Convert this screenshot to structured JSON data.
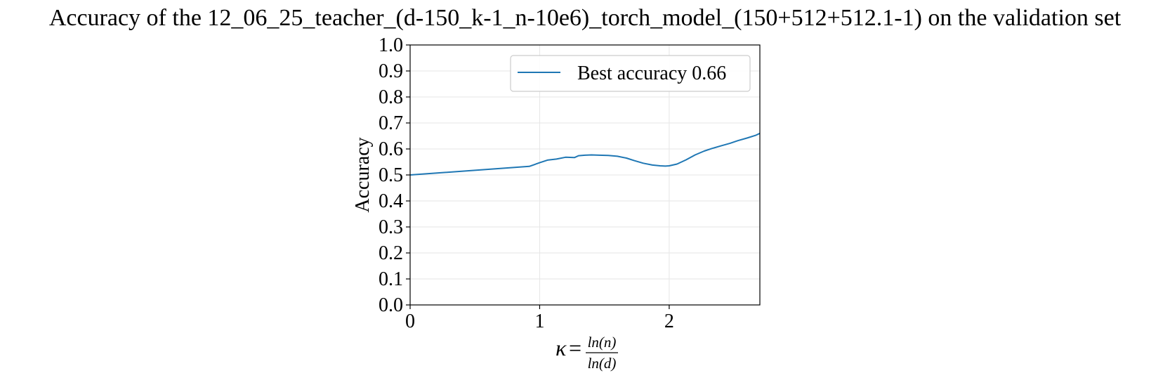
{
  "chart_data": {
    "type": "line",
    "title": "Accuracy of the 12_06_25_teacher_(d-150_k-1_n-10e6)_torch_model_(150+512+512.1-1) on the validation set",
    "xlabel": {
      "symbol": "κ",
      "equals": "=",
      "numerator": "ln(n)",
      "denominator": "ln(d)"
    },
    "ylabel": "Accuracy",
    "xlim": [
      0,
      2.7
    ],
    "ylim": [
      0,
      1.0
    ],
    "xticks": [
      0,
      1,
      2
    ],
    "xtick_labels": [
      "0",
      "1",
      "2"
    ],
    "yticks": [
      0.0,
      0.1,
      0.2,
      0.3,
      0.4,
      0.5,
      0.6,
      0.7,
      0.8,
      0.9,
      1.0
    ],
    "ytick_labels": [
      "0.0",
      "0.1",
      "0.2",
      "0.3",
      "0.4",
      "0.5",
      "0.6",
      "0.7",
      "0.8",
      "0.9",
      "1.0"
    ],
    "grid": true,
    "legend_position": "top-right",
    "series": [
      {
        "name": "Best accuracy 0.66",
        "color": "#1f77b4",
        "x": [
          0,
          0.92,
          1.0,
          1.06,
          1.13,
          1.2,
          1.27,
          1.3,
          1.35,
          1.4,
          1.46,
          1.53,
          1.6,
          1.67,
          1.73,
          1.8,
          1.87,
          1.93,
          1.97,
          2.0,
          2.06,
          2.13,
          2.2,
          2.27,
          2.33,
          2.4,
          2.47,
          2.53,
          2.6,
          2.67,
          2.7
        ],
        "y": [
          0.5,
          0.533,
          0.547,
          0.557,
          0.561,
          0.568,
          0.567,
          0.574,
          0.576,
          0.577,
          0.576,
          0.575,
          0.572,
          0.565,
          0.555,
          0.545,
          0.538,
          0.535,
          0.534,
          0.535,
          0.542,
          0.558,
          0.577,
          0.592,
          0.602,
          0.612,
          0.622,
          0.632,
          0.642,
          0.653,
          0.66
        ]
      }
    ]
  }
}
